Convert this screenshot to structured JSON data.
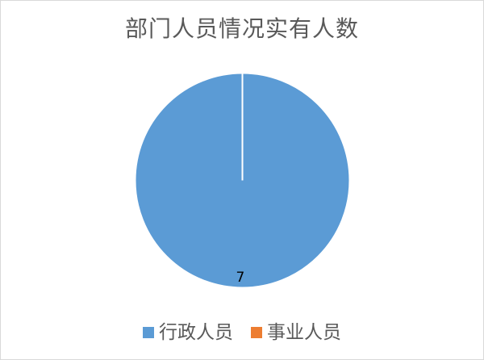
{
  "chart_data": {
    "type": "pie",
    "title": "部门人员情况实有人数",
    "categories": [
      "行政人员",
      "事业人员"
    ],
    "values": [
      7,
      0
    ],
    "colors": [
      "#5b9bd5",
      "#ed7d31"
    ],
    "data_labels": [
      "7",
      ""
    ],
    "legend_position": "bottom"
  }
}
